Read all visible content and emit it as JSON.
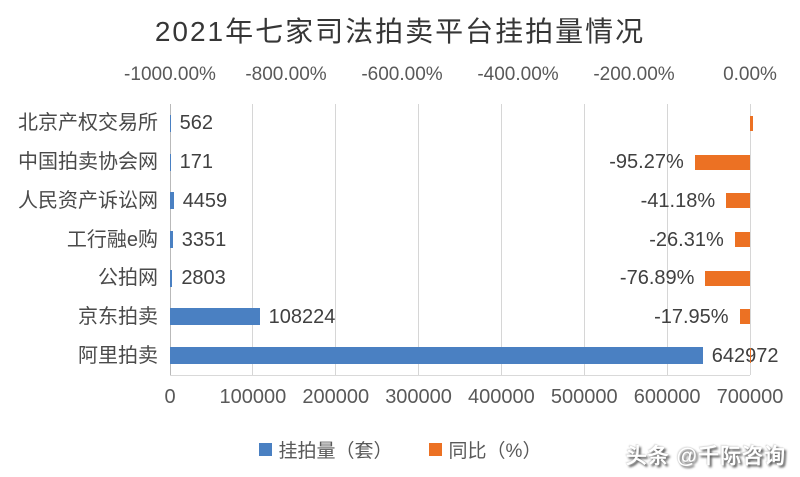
{
  "title": "2021年七家司法拍卖平台挂拍量情况",
  "watermark": "头条 @千际咨询",
  "colors": {
    "bar_blue": "#4a80c2",
    "bar_orange": "#ec7123",
    "gridline": "#d6d6d6",
    "axis_zero_line": "#b9b9b9",
    "axis_text": "#595959",
    "data_label_text": "#404040"
  },
  "legend": [
    {
      "label": "挂拍量（套）",
      "color": "#4a80c2"
    },
    {
      "label": "同比（%）",
      "color": "#ec7123"
    }
  ],
  "chart_data": {
    "type": "bar",
    "orientation": "horizontal",
    "title": "2021年七家司法拍卖平台挂拍量情况",
    "categories": [
      "北京产权交易所",
      "中国拍卖协会网",
      "人民资产诉讼网",
      "工行融e购",
      "公拍网",
      "京东拍卖",
      "阿里拍卖"
    ],
    "series": [
      {
        "name": "挂拍量（套）",
        "axis": "primary",
        "color": "#4a80c2",
        "values": [
          562,
          171,
          4459,
          3351,
          2803,
          108224,
          642972
        ],
        "labels": [
          "562",
          "171",
          "4459",
          "3351",
          "2803",
          "108224",
          "642972"
        ]
      },
      {
        "name": "同比（%）",
        "axis": "secondary",
        "color": "#ec7123",
        "values": [
          5,
          -95.27,
          -41.18,
          -26.31,
          -76.89,
          -17.95,
          2
        ],
        "labels": [
          "",
          "-95.27%",
          "-41.18%",
          "-26.31%",
          "-76.89%",
          "-17.95%",
          ""
        ]
      }
    ],
    "primary_axis": {
      "position": "bottom",
      "min": 0,
      "max": 700000,
      "ticks": [
        "0",
        "100000",
        "200000",
        "300000",
        "400000",
        "500000",
        "600000",
        "700000"
      ]
    },
    "secondary_axis": {
      "position": "top",
      "min": -1000,
      "max": 0,
      "ticks": [
        "-1000.00%",
        "-800.00%",
        "-600.00%",
        "-400.00%",
        "-200.00%",
        "0.00%"
      ]
    },
    "grid": true,
    "legend_position": "bottom"
  }
}
